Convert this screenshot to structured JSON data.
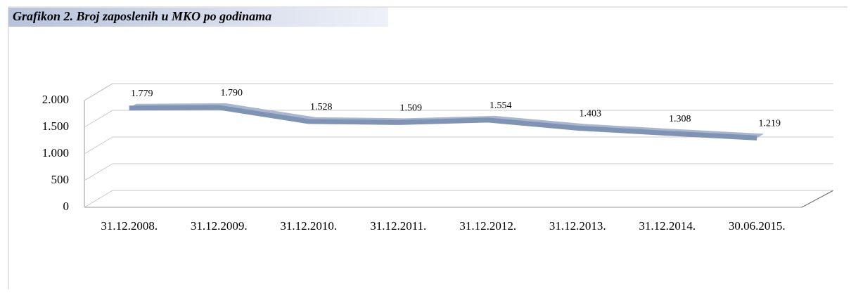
{
  "chart_data": {
    "type": "line",
    "title": "Grafikon 2. Broj zaposlenih u MKO po godinama",
    "categories": [
      "31.12.2008.",
      "31.12.2009.",
      "31.12.2010.",
      "31.12.2011.",
      "31.12.2012.",
      "31.12.2013.",
      "31.12.2014.",
      "30.06.2015."
    ],
    "values": [
      1779,
      1790,
      1528,
      1509,
      1554,
      1403,
      1308,
      1219
    ],
    "value_labels": [
      "1.779",
      "1.790",
      "1.528",
      "1.509",
      "1.554",
      "1.403",
      "1.308",
      "1.219"
    ],
    "color": "#7f93b5",
    "ylim": [
      0,
      2000
    ],
    "yticks": [
      0,
      500,
      {
        "value": 1000,
        "label": "1.000"
      },
      {
        "value": 1500,
        "label": "1.500"
      },
      {
        "value": 2000,
        "label": "2.000"
      }
    ],
    "grid": true
  }
}
